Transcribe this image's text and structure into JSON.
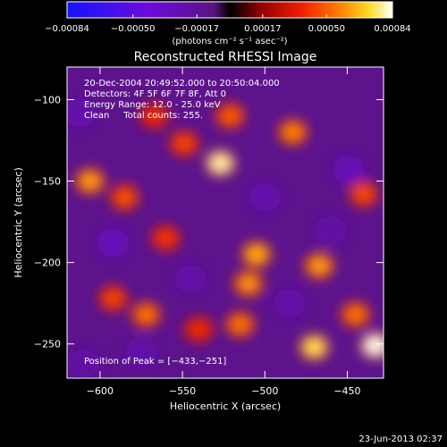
{
  "chart_data": {
    "type": "heatmap",
    "title": "Reconstructed RHESSI Image",
    "xlabel": "Heliocentric X (arcsec)",
    "ylabel": "Heliocentric Y (arcsec)",
    "xlim": [
      -620,
      -428
    ],
    "ylim": [
      -271,
      -80
    ],
    "xticks": [
      -600,
      -550,
      -500,
      -450
    ],
    "yticks": [
      -100,
      -150,
      -200,
      -250
    ],
    "xtick_labels": [
      "−600",
      "−550",
      "−500",
      "−450"
    ],
    "ytick_labels": [
      "−100",
      "−150",
      "−200",
      "−250"
    ],
    "colorbar": {
      "min": -0.00084,
      "max": 0.00084,
      "tick_values": [
        -0.00084,
        -0.0005,
        -0.00017,
        0.00017,
        0.0005,
        0.00084
      ],
      "tick_labels": [
        "−0.00084",
        "−0.00050",
        "−0.00017",
        "0.00017",
        "0.00050",
        "0.00084"
      ],
      "unit": "(photons cm⁻² s⁻¹ asec⁻²)"
    },
    "annotations": {
      "time": "20-Dec-2004 20:49:52.000 to 20:50:04.000",
      "detectors": "Detectors: 4F 5F 6F 7F 8F, Att 0",
      "energy": "Energy Range: 12.0 - 25.0 keV",
      "clean": "Clean     Total counts: 255.",
      "peak": "Position of Peak = [−433,−251]"
    },
    "peak": {
      "x": -433,
      "y": -251
    },
    "blobs": [
      {
        "x": -606,
        "y": -150,
        "v": 0.00062
      },
      {
        "x": -585,
        "y": -160,
        "v": 0.00048
      },
      {
        "x": -567,
        "y": -110,
        "v": 0.0004
      },
      {
        "x": -549,
        "y": -127,
        "v": 0.00045
      },
      {
        "x": -527,
        "y": -139,
        "v": 0.0008
      },
      {
        "x": -521,
        "y": -110,
        "v": 0.0005
      },
      {
        "x": -483,
        "y": -120,
        "v": 0.00058
      },
      {
        "x": -440,
        "y": -158,
        "v": 0.00046
      },
      {
        "x": -560,
        "y": -185,
        "v": 0.00042
      },
      {
        "x": -505,
        "y": -195,
        "v": 0.00065
      },
      {
        "x": -510,
        "y": -213,
        "v": 0.0006
      },
      {
        "x": -467,
        "y": -202,
        "v": 0.00062
      },
      {
        "x": -592,
        "y": -222,
        "v": 0.00045
      },
      {
        "x": -572,
        "y": -232,
        "v": 0.00055
      },
      {
        "x": -540,
        "y": -241,
        "v": 0.0004
      },
      {
        "x": -515,
        "y": -238,
        "v": 0.00055
      },
      {
        "x": -470,
        "y": -252,
        "v": 0.00075
      },
      {
        "x": -433,
        "y": -251,
        "v": 0.00084
      },
      {
        "x": -445,
        "y": -232,
        "v": 0.00055
      },
      {
        "x": -612,
        "y": -108,
        "v": -0.0004
      },
      {
        "x": -592,
        "y": -188,
        "v": -0.00055
      },
      {
        "x": -500,
        "y": -160,
        "v": -0.0004
      },
      {
        "x": -449,
        "y": -143,
        "v": -0.0005
      },
      {
        "x": -610,
        "y": -262,
        "v": -0.0003
      },
      {
        "x": -575,
        "y": -255,
        "v": -0.00035
      },
      {
        "x": -545,
        "y": -210,
        "v": -0.00035
      },
      {
        "x": -485,
        "y": -225,
        "v": -0.00035
      },
      {
        "x": -460,
        "y": -180,
        "v": -0.0003
      }
    ]
  },
  "footer": {
    "timestamp": "23-Jun-2013 02:37"
  }
}
